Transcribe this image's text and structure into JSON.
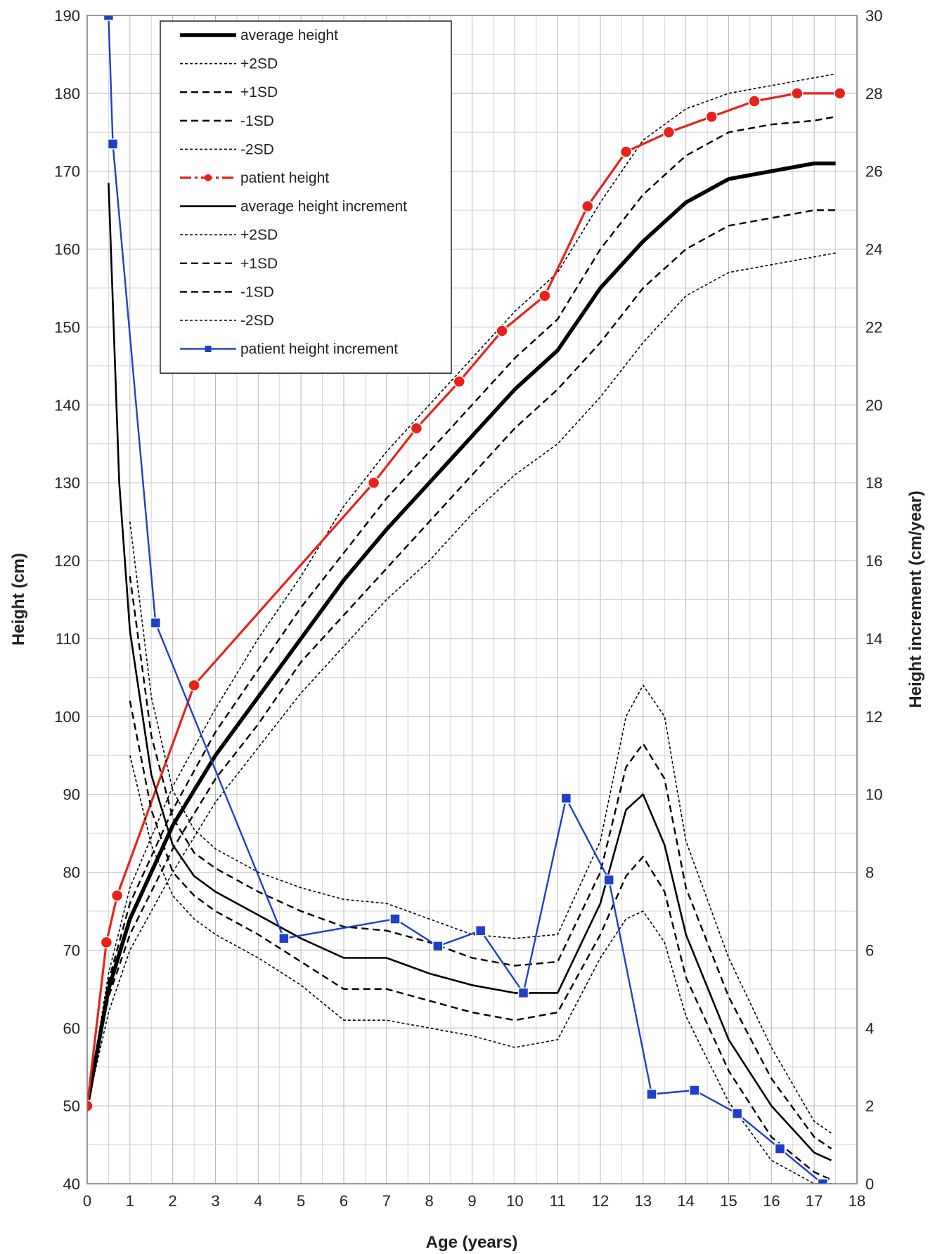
{
  "chart_data": {
    "type": "line",
    "xlabel": "Age (years)",
    "ylabel": "Height (cm)",
    "y2label": "Height increment (cm/year)",
    "xlim": [
      0,
      18
    ],
    "ylim": [
      40,
      190
    ],
    "y2lim": [
      0,
      30
    ],
    "x_ticks": [
      0,
      1,
      2,
      3,
      4,
      5,
      6,
      7,
      8,
      9,
      10,
      11,
      12,
      13,
      14,
      15,
      16,
      17,
      18
    ],
    "y_ticks": [
      40,
      50,
      60,
      70,
      80,
      90,
      100,
      110,
      120,
      130,
      140,
      150,
      160,
      170,
      180,
      190
    ],
    "y2_ticks": [
      0,
      2,
      4,
      6,
      8,
      10,
      12,
      14,
      16,
      18,
      20,
      22,
      24,
      26,
      28,
      30
    ],
    "grid": true,
    "legend_position": "top-left",
    "series": [
      {
        "name": "average height",
        "axis": "left",
        "style": "solid-thick",
        "color": "#000000",
        "points": [
          [
            0,
            50
          ],
          [
            0.5,
            65
          ],
          [
            1,
            74
          ],
          [
            2,
            86
          ],
          [
            3,
            95
          ],
          [
            4,
            102.5
          ],
          [
            5,
            110
          ],
          [
            6,
            117.5
          ],
          [
            7,
            124
          ],
          [
            8,
            130
          ],
          [
            9,
            136
          ],
          [
            10,
            142
          ],
          [
            11,
            147
          ],
          [
            12,
            155
          ],
          [
            13,
            161
          ],
          [
            14,
            166
          ],
          [
            15,
            169
          ],
          [
            16,
            170
          ],
          [
            17,
            171
          ],
          [
            17.5,
            171
          ]
        ]
      },
      {
        "name": "+2SD",
        "axis": "left",
        "style": "dotted",
        "color": "#000000",
        "points": [
          [
            0,
            50
          ],
          [
            0.5,
            67
          ],
          [
            1,
            78
          ],
          [
            2,
            91
          ],
          [
            3,
            101
          ],
          [
            4,
            110
          ],
          [
            5,
            118
          ],
          [
            6,
            127
          ],
          [
            7,
            134
          ],
          [
            8,
            140
          ],
          [
            9,
            146
          ],
          [
            10,
            152
          ],
          [
            11,
            157
          ],
          [
            12,
            166
          ],
          [
            13,
            174
          ],
          [
            14,
            178
          ],
          [
            15,
            180
          ],
          [
            16,
            181
          ],
          [
            17,
            182
          ],
          [
            17.5,
            182.5
          ]
        ]
      },
      {
        "name": "+1SD",
        "axis": "left",
        "style": "dashed",
        "color": "#000000",
        "points": [
          [
            0,
            50
          ],
          [
            0.5,
            66
          ],
          [
            1,
            76
          ],
          [
            2,
            88
          ],
          [
            3,
            98
          ],
          [
            4,
            106
          ],
          [
            5,
            114
          ],
          [
            6,
            121
          ],
          [
            7,
            128
          ],
          [
            8,
            134
          ],
          [
            9,
            140
          ],
          [
            10,
            146
          ],
          [
            11,
            151
          ],
          [
            12,
            160
          ],
          [
            13,
            167
          ],
          [
            14,
            172
          ],
          [
            15,
            175
          ],
          [
            16,
            176
          ],
          [
            17,
            176.5
          ],
          [
            17.5,
            177
          ]
        ]
      },
      {
        "name": "-1SD",
        "axis": "left",
        "style": "dashed",
        "color": "#000000",
        "points": [
          [
            0,
            50
          ],
          [
            0.5,
            64
          ],
          [
            1,
            72
          ],
          [
            2,
            83
          ],
          [
            3,
            92
          ],
          [
            4,
            99
          ],
          [
            5,
            107
          ],
          [
            6,
            113
          ],
          [
            7,
            119
          ],
          [
            8,
            125
          ],
          [
            9,
            131
          ],
          [
            10,
            137
          ],
          [
            11,
            142
          ],
          [
            12,
            148
          ],
          [
            13,
            155
          ],
          [
            14,
            160
          ],
          [
            15,
            163
          ],
          [
            16,
            164
          ],
          [
            17,
            165
          ],
          [
            17.5,
            165
          ]
        ]
      },
      {
        "name": "-2SD",
        "axis": "left",
        "style": "dotted",
        "color": "#000000",
        "points": [
          [
            0,
            50
          ],
          [
            0.5,
            62
          ],
          [
            1,
            70
          ],
          [
            2,
            80
          ],
          [
            3,
            89
          ],
          [
            4,
            96
          ],
          [
            5,
            103
          ],
          [
            6,
            109
          ],
          [
            7,
            115
          ],
          [
            8,
            120
          ],
          [
            9,
            126
          ],
          [
            10,
            131
          ],
          [
            11,
            135
          ],
          [
            12,
            141
          ],
          [
            13,
            148
          ],
          [
            14,
            154
          ],
          [
            15,
            157
          ],
          [
            16,
            158
          ],
          [
            17,
            159
          ],
          [
            17.5,
            159.5
          ]
        ]
      },
      {
        "name": "patient height",
        "axis": "left",
        "style": "dash-dot-marker",
        "color": "#e8221a",
        "marker": "circle",
        "points": [
          [
            0,
            50
          ],
          [
            0.45,
            71
          ],
          [
            0.7,
            77
          ],
          [
            2.5,
            104
          ],
          [
            6.7,
            130
          ],
          [
            7.7,
            137
          ],
          [
            8.7,
            143
          ],
          [
            9.7,
            149.5
          ],
          [
            10.7,
            154
          ],
          [
            11.7,
            165.5
          ],
          [
            12.6,
            172.5
          ],
          [
            13.6,
            175
          ],
          [
            14.6,
            177
          ],
          [
            15.6,
            179
          ],
          [
            16.6,
            180
          ],
          [
            17.6,
            180
          ]
        ]
      },
      {
        "name": "average height increment",
        "axis": "right",
        "style": "solid",
        "color": "#000000",
        "points": [
          [
            0.5,
            25.7
          ],
          [
            0.75,
            18
          ],
          [
            1,
            14.2
          ],
          [
            1.5,
            10.5
          ],
          [
            2,
            8.7
          ],
          [
            2.5,
            7.9
          ],
          [
            3,
            7.5
          ],
          [
            4,
            6.9
          ],
          [
            5,
            6.3
          ],
          [
            6,
            5.8
          ],
          [
            7,
            5.8
          ],
          [
            8,
            5.4
          ],
          [
            9,
            5.1
          ],
          [
            10,
            4.9
          ],
          [
            11,
            4.9
          ],
          [
            12,
            7.2
          ],
          [
            12.6,
            9.6
          ],
          [
            13,
            10
          ],
          [
            13.5,
            8.7
          ],
          [
            14,
            6.4
          ],
          [
            15,
            3.7
          ],
          [
            16,
            2
          ],
          [
            17,
            0.8
          ],
          [
            17.4,
            0.6
          ]
        ]
      },
      {
        "name": "+2SD",
        "axis": "right",
        "style": "dotted",
        "color": "#000000",
        "points": [
          [
            1,
            17
          ],
          [
            1.5,
            12.5
          ],
          [
            2,
            10.1
          ],
          [
            2.5,
            9.1
          ],
          [
            3,
            8.6
          ],
          [
            4,
            8
          ],
          [
            5,
            7.6
          ],
          [
            6,
            7.3
          ],
          [
            7,
            7.2
          ],
          [
            8,
            6.8
          ],
          [
            9,
            6.4
          ],
          [
            10,
            6.3
          ],
          [
            11,
            6.4
          ],
          [
            12,
            8.8
          ],
          [
            12.6,
            12
          ],
          [
            13,
            12.8
          ],
          [
            13.5,
            12
          ],
          [
            14,
            8.8
          ],
          [
            15,
            5.8
          ],
          [
            16,
            3.5
          ],
          [
            17,
            1.6
          ],
          [
            17.4,
            1.3
          ]
        ]
      },
      {
        "name": "+1SD",
        "axis": "right",
        "style": "dashed",
        "color": "#000000",
        "points": [
          [
            1,
            15.6
          ],
          [
            1.5,
            11.5
          ],
          [
            2,
            9.4
          ],
          [
            2.5,
            8.5
          ],
          [
            3,
            8.1
          ],
          [
            4,
            7.5
          ],
          [
            5,
            7
          ],
          [
            6,
            6.6
          ],
          [
            7,
            6.5
          ],
          [
            8,
            6.2
          ],
          [
            9,
            5.8
          ],
          [
            10,
            5.6
          ],
          [
            11,
            5.7
          ],
          [
            12,
            8
          ],
          [
            12.6,
            10.7
          ],
          [
            13,
            11.3
          ],
          [
            13.5,
            10.4
          ],
          [
            14,
            7.6
          ],
          [
            15,
            4.8
          ],
          [
            16,
            2.7
          ],
          [
            17,
            1.2
          ],
          [
            17.4,
            0.9
          ]
        ]
      },
      {
        "name": "-1SD",
        "axis": "right",
        "style": "dashed",
        "color": "#000000",
        "points": [
          [
            1,
            12.4
          ],
          [
            1.5,
            9.6
          ],
          [
            2,
            8
          ],
          [
            2.5,
            7.4
          ],
          [
            3,
            7
          ],
          [
            4,
            6.4
          ],
          [
            5,
            5.7
          ],
          [
            6,
            5
          ],
          [
            7,
            5
          ],
          [
            8,
            4.7
          ],
          [
            9,
            4.4
          ],
          [
            10,
            4.2
          ],
          [
            11,
            4.4
          ],
          [
            12,
            6.4
          ],
          [
            12.6,
            7.9
          ],
          [
            13,
            8.4
          ],
          [
            13.5,
            7.5
          ],
          [
            14,
            5.3
          ],
          [
            15,
            2.9
          ],
          [
            16,
            1.2
          ],
          [
            17,
            0.3
          ],
          [
            17.4,
            0.1
          ]
        ]
      },
      {
        "name": "-2SD",
        "axis": "right",
        "style": "dotted",
        "color": "#000000",
        "points": [
          [
            1,
            11
          ],
          [
            1.5,
            8.7
          ],
          [
            2,
            7.4
          ],
          [
            2.5,
            6.8
          ],
          [
            3,
            6.4
          ],
          [
            4,
            5.8
          ],
          [
            5,
            5.1
          ],
          [
            6,
            4.2
          ],
          [
            7,
            4.2
          ],
          [
            8,
            4
          ],
          [
            9,
            3.8
          ],
          [
            10,
            3.5
          ],
          [
            11,
            3.7
          ],
          [
            12,
            5.8
          ],
          [
            12.6,
            6.8
          ],
          [
            13,
            7
          ],
          [
            13.5,
            6.2
          ],
          [
            14,
            4.3
          ],
          [
            15,
            2.1
          ],
          [
            16,
            0.6
          ],
          [
            17,
            0
          ],
          [
            17.4,
            0
          ]
        ]
      },
      {
        "name": "patient height increment",
        "axis": "right",
        "style": "solid-marker",
        "color": "#1f3fc8",
        "marker": "square",
        "points": [
          [
            0.5,
            30
          ],
          [
            0.6,
            26.7
          ],
          [
            1.6,
            14.4
          ],
          [
            4.6,
            6.3
          ],
          [
            7.2,
            6.8
          ],
          [
            8.2,
            6.1
          ],
          [
            9.2,
            6.5
          ],
          [
            10.2,
            4.9
          ],
          [
            11.2,
            9.9
          ],
          [
            12.2,
            7.8
          ],
          [
            13.2,
            2.3
          ],
          [
            14.2,
            2.4
          ],
          [
            15.2,
            1.8
          ],
          [
            16.2,
            0.9
          ],
          [
            17.2,
            0
          ]
        ]
      }
    ]
  }
}
